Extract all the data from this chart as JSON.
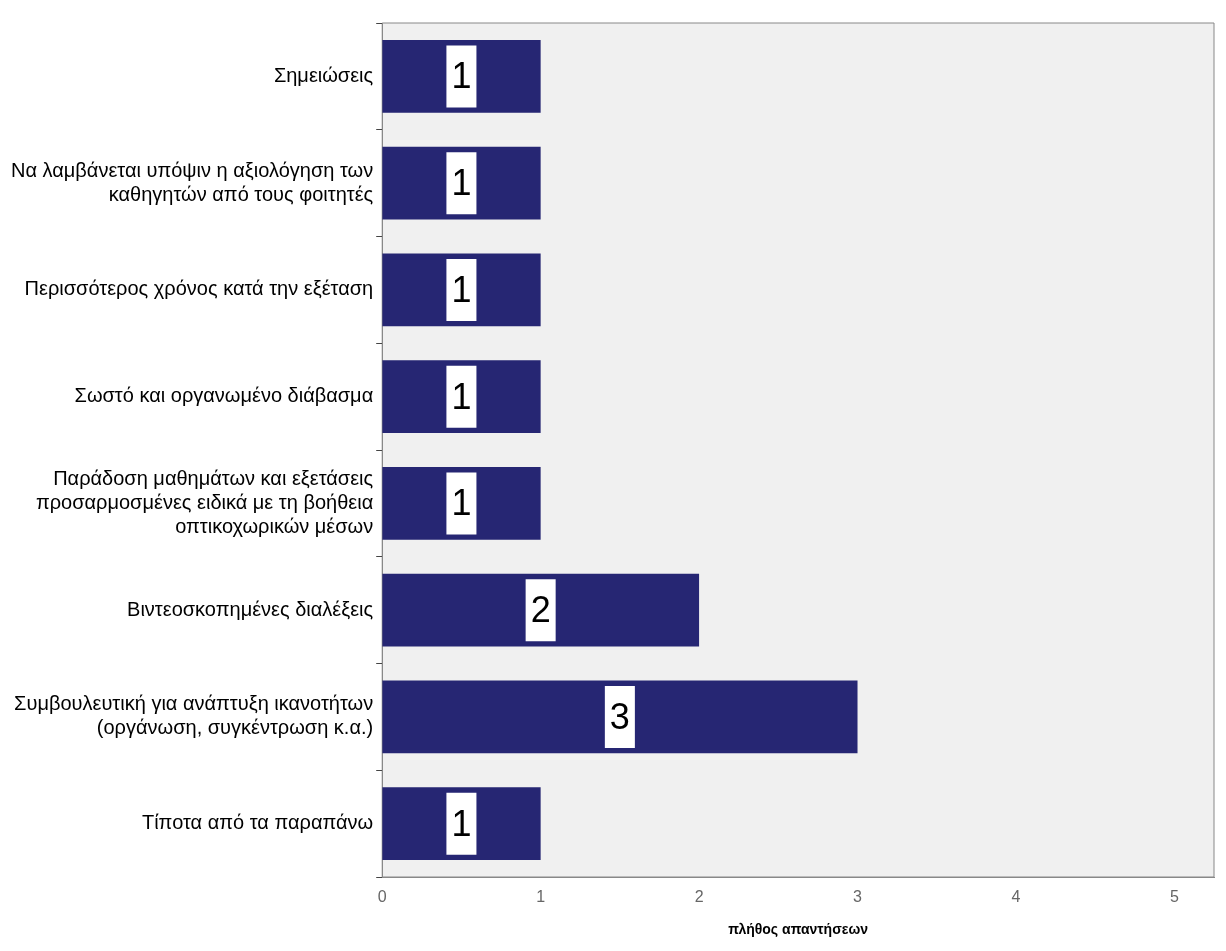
{
  "chart_data": {
    "type": "bar",
    "orientation": "horizontal",
    "xlabel": "πλήθος απαντήσεων",
    "categories": [
      "Σημειώσεις",
      "Να λαμβάνεται υπόψιν η αξιολόγηση των\nκαθηγητών από τους φοιτητές",
      "Περισσότερος χρόνος κατά την εξέταση",
      "Σωστό και οργανωμένο διάβασμα",
      "Παράδοση μαθημάτων και εξετάσεις\nπροσαρμοσμένες ειδικά με τη βοήθεια\nοπτικοχωρικών μέσων",
      "Βιντεοσκοπημένες διαλέξεις",
      "Συμβουλευτική για ανάπτυξη ικανοτήτων\n(οργάνωση, συγκέντρωση κ.α.)",
      "Τίποτα από τα παραπάνω"
    ],
    "values": [
      1,
      1,
      1,
      1,
      1,
      2,
      3,
      1
    ],
    "color": "#262673",
    "xlim": [
      0,
      5.25
    ],
    "xticks": [
      0,
      1,
      2,
      3,
      4,
      5
    ],
    "data_labels": true,
    "grid": false,
    "legend": false
  }
}
